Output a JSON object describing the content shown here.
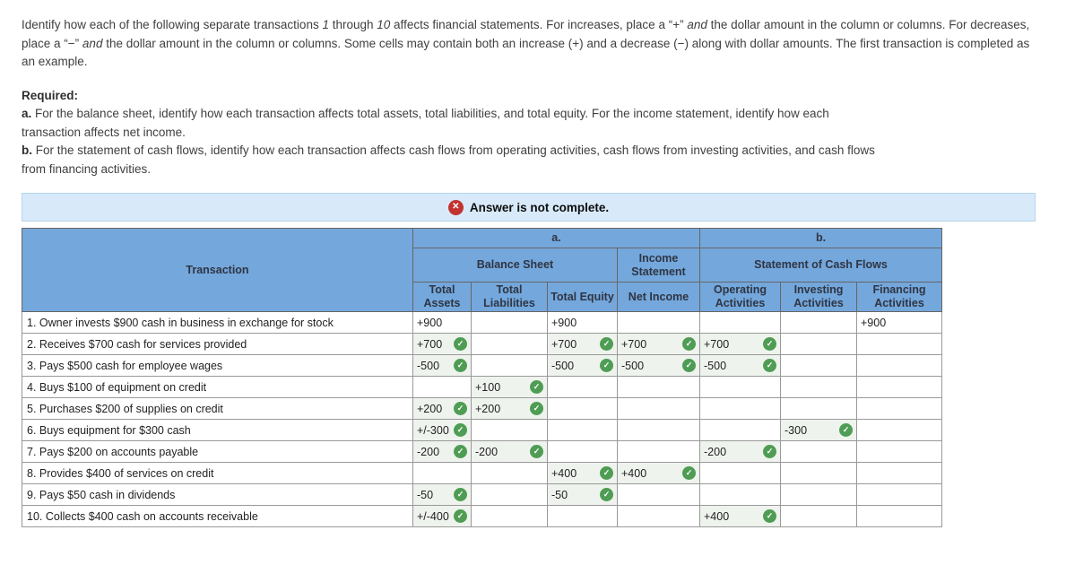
{
  "intro": {
    "parts": [
      {
        "t": "Identify how each of the following separate transactions ",
        "i": false
      },
      {
        "t": "1",
        "i": true
      },
      {
        "t": " through ",
        "i": false
      },
      {
        "t": "10",
        "i": true
      },
      {
        "t": " affects financial statements. For increases, place a “+” ",
        "i": false
      },
      {
        "t": "and",
        "i": true
      },
      {
        "t": " the dollar amount in the column or columns. For decreases, place a “−” ",
        "i": false
      },
      {
        "t": "and",
        "i": true
      },
      {
        "t": " the dollar amount in the column or columns. Some cells may contain both an increase (+) and a decrease (−) along with dollar amounts. The first transaction is completed as an example.",
        "i": false
      }
    ]
  },
  "required": {
    "title": "Required:",
    "items": [
      {
        "prefix": "a.",
        "text": " For the balance sheet, identify how each transaction affects total assets, total liabilities, and total equity. For the income statement, identify how each transaction affects net income."
      },
      {
        "prefix": "b.",
        "text": " For the statement of cash flows, identify how each transaction affects cash flows from operating activities, cash flows from investing activities, and cash flows from financing activities."
      }
    ]
  },
  "banner": {
    "icon": "x-circle-icon",
    "text": "Answer is not complete."
  },
  "table": {
    "header": {
      "transaction": "Transaction",
      "group_a": "a.",
      "group_b": "b.",
      "balance_sheet": "Balance Sheet",
      "income_statement": "Income Statement",
      "cash_flows": "Statement of Cash Flows",
      "columns": [
        "Total Assets",
        "Total Liabilities",
        "Total Equity",
        "Net Income",
        "Operating Activities",
        "Investing Activities",
        "Financing Activities"
      ]
    },
    "rows": [
      {
        "label": "1. Owner invests $900 cash in business in exchange for stock",
        "cells": [
          {
            "value": "+900",
            "checked": false
          },
          null,
          {
            "value": "+900",
            "checked": false
          },
          null,
          null,
          null,
          {
            "value": "+900",
            "checked": false
          }
        ]
      },
      {
        "label": "2. Receives $700 cash for services provided",
        "cells": [
          {
            "value": "+700",
            "checked": true
          },
          null,
          {
            "value": "+700",
            "checked": true
          },
          {
            "value": "+700",
            "checked": true
          },
          {
            "value": "+700",
            "checked": true
          },
          null,
          null
        ]
      },
      {
        "label": "3. Pays $500 cash for employee wages",
        "cells": [
          {
            "value": "-500",
            "checked": true
          },
          null,
          {
            "value": "-500",
            "checked": true
          },
          {
            "value": "-500",
            "checked": true
          },
          {
            "value": "-500",
            "checked": true
          },
          null,
          null
        ]
      },
      {
        "label": "4. Buys $100 of equipment on credit",
        "cells": [
          null,
          {
            "value": "+100",
            "checked": true
          },
          null,
          null,
          null,
          null,
          null
        ]
      },
      {
        "label": "5. Purchases $200 of supplies on credit",
        "cells": [
          {
            "value": "+200",
            "checked": true
          },
          {
            "value": "+200",
            "checked": true
          },
          null,
          null,
          null,
          null,
          null
        ]
      },
      {
        "label": "6. Buys equipment for $300 cash",
        "cells": [
          {
            "value": "+/-300",
            "checked": true
          },
          null,
          null,
          null,
          null,
          {
            "value": "-300",
            "checked": true
          },
          null
        ]
      },
      {
        "label": "7. Pays $200 on accounts payable",
        "cells": [
          {
            "value": "-200",
            "checked": true
          },
          {
            "value": "-200",
            "checked": true
          },
          null,
          null,
          {
            "value": "-200",
            "checked": true
          },
          null,
          null
        ]
      },
      {
        "label": "8. Provides $400 of services on credit",
        "cells": [
          null,
          null,
          {
            "value": "+400",
            "checked": true
          },
          {
            "value": "+400",
            "checked": true
          },
          null,
          null,
          null
        ]
      },
      {
        "label": "9. Pays $50 cash in dividends",
        "cells": [
          {
            "value": "-50",
            "checked": true
          },
          null,
          {
            "value": "-50",
            "checked": true
          },
          null,
          null,
          null,
          null
        ]
      },
      {
        "label": "10. Collects $400 cash on accounts receivable",
        "cells": [
          {
            "value": "+/-400",
            "checked": true
          },
          null,
          null,
          null,
          {
            "value": "+400",
            "checked": true
          },
          null,
          null
        ]
      }
    ]
  },
  "colors": {
    "header_blue": "#74a7dc",
    "banner_bg": "#d8eafa",
    "banner_border": "#b6d4ec",
    "check_green": "#4f9d54",
    "error_red": "#c2332f",
    "filled_cell": "#eff3ee"
  }
}
